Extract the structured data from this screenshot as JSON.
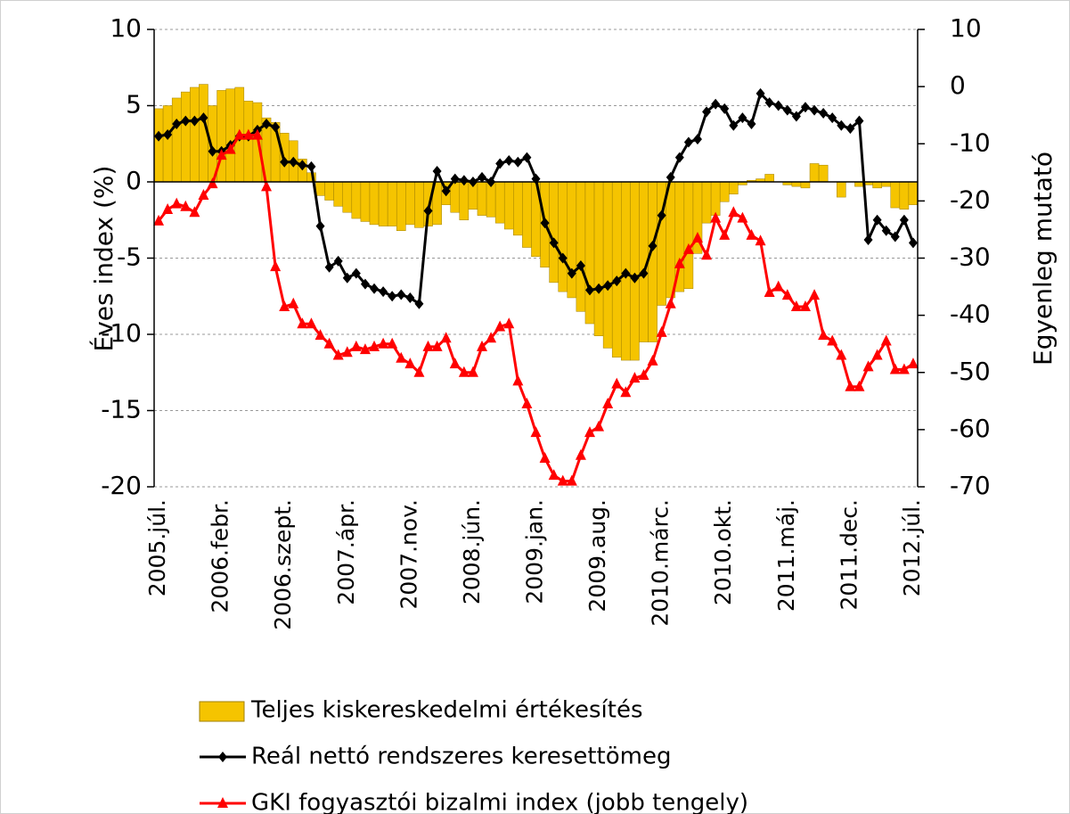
{
  "chart_data": {
    "type": "bar-line",
    "y_label": "Éves index (%)",
    "y2_label": "Egyenleg mutató",
    "categories": [
      "2005.júl.",
      null,
      null,
      null,
      null,
      null,
      null,
      "2006.febr.",
      null,
      null,
      null,
      null,
      null,
      null,
      "2006.szept.",
      null,
      null,
      null,
      null,
      null,
      null,
      "2007.ápr.",
      null,
      null,
      null,
      null,
      null,
      null,
      "2007.nov.",
      null,
      null,
      null,
      null,
      null,
      null,
      "2008.jún.",
      null,
      null,
      null,
      null,
      null,
      null,
      "2009.jan.",
      null,
      null,
      null,
      null,
      null,
      null,
      "2009.aug.",
      null,
      null,
      null,
      null,
      null,
      null,
      "2010.márc.",
      null,
      null,
      null,
      null,
      null,
      null,
      "2010.okt.",
      null,
      null,
      null,
      null,
      null,
      null,
      "2011.máj.",
      null,
      null,
      null,
      null,
      null,
      null,
      "2011.dec.",
      null,
      null,
      null,
      null,
      null,
      null,
      "2012.júl."
    ],
    "ylim": [
      -20,
      10
    ],
    "yticks": [
      10,
      5,
      0,
      -5,
      -10,
      -15,
      -20
    ],
    "y2lim": [
      -70,
      10
    ],
    "y2ticks": [
      10,
      0,
      -10,
      -20,
      -30,
      -40,
      -50,
      -60,
      -70
    ],
    "grid": true,
    "series": [
      {
        "name": "Teljes kiskereskedelmi értékesítés",
        "type": "bar",
        "color": "#f5c400",
        "values": [
          4.8,
          5.0,
          5.5,
          5.9,
          6.2,
          6.4,
          5.0,
          6.0,
          6.1,
          6.2,
          5.3,
          5.2,
          4.2,
          3.9,
          3.2,
          2.7,
          1.5,
          0.6,
          -0.9,
          -1.2,
          -1.6,
          -2.0,
          -2.4,
          -2.6,
          -2.8,
          -2.9,
          -2.9,
          -3.2,
          -2.8,
          -3.0,
          -2.9,
          -2.8,
          -1.5,
          -2.0,
          -2.5,
          -1.8,
          -2.2,
          -2.3,
          -2.7,
          -3.1,
          -3.5,
          -4.3,
          -4.9,
          -5.6,
          -6.6,
          -7.2,
          -7.6,
          -8.5,
          -9.3,
          -10.1,
          -10.9,
          -11.5,
          -11.7,
          -11.7,
          -10.5,
          -10.5,
          -8.1,
          -7.6,
          -7.2,
          -7.0,
          -4.7,
          -2.7,
          -2.2,
          -1.3,
          -0.8,
          -0.2,
          0.1,
          0.2,
          0.5,
          0.0,
          -0.2,
          -0.3,
          -0.4,
          1.2,
          1.1,
          0.0,
          -1.0,
          0.0,
          -0.3,
          -0.2,
          -0.4,
          -0.3,
          -1.7,
          -1.8,
          -1.5
        ]
      },
      {
        "name": "Reál nettó rendszeres keresettömeg",
        "type": "line",
        "marker": "diamond",
        "color": "#000000",
        "values": [
          3.0,
          3.1,
          3.8,
          4.0,
          4.0,
          4.2,
          2.0,
          2.0,
          2.4,
          3.0,
          3.0,
          3.4,
          3.8,
          3.6,
          1.3,
          1.3,
          1.1,
          1.0,
          -2.9,
          -5.6,
          -5.2,
          -6.3,
          -6.0,
          -6.7,
          -7.0,
          -7.2,
          -7.5,
          -7.4,
          -7.6,
          -8.0,
          -1.9,
          0.7,
          -0.6,
          0.2,
          0.1,
          0.0,
          0.3,
          0.0,
          1.2,
          1.4,
          1.3,
          1.6,
          0.2,
          -2.7,
          -4.0,
          -5.0,
          -6.0,
          -5.5,
          -7.1,
          -7.0,
          -6.8,
          -6.5,
          -6.0,
          -6.3,
          -6.0,
          -4.2,
          -2.2,
          0.3,
          1.6,
          2.6,
          2.8,
          4.6,
          5.1,
          4.8,
          3.7,
          4.2,
          3.8,
          5.8,
          5.2,
          5.0,
          4.7,
          4.3,
          4.9,
          4.7,
          4.5,
          4.2,
          3.7,
          3.5,
          4.0,
          -3.8,
          -2.5,
          -3.2,
          -3.6,
          -2.5,
          -4.0
        ]
      },
      {
        "name": "GKI fogyasztói bizalmi index (jobb tengely)",
        "type": "line",
        "marker": "triangle",
        "axis": "y2",
        "color": "#ff0000",
        "values": [
          -23.5,
          -21.5,
          -20.5,
          -21,
          -22,
          -19,
          -17,
          -12,
          -11,
          -8.5,
          -8.5,
          -8.5,
          -17.5,
          -31.5,
          -38.5,
          -38,
          -41.5,
          -41.5,
          -43.5,
          -45,
          -47,
          -46.5,
          -45.5,
          -46,
          -45.5,
          -45,
          -45,
          -47.5,
          -48.5,
          -50,
          -45.5,
          -45.5,
          -44,
          -48.5,
          -50,
          -50,
          -45.5,
          -44,
          -42,
          -41.5,
          -51.5,
          -55.5,
          -60.5,
          -65,
          -68,
          -69,
          -69,
          -64.5,
          -60.5,
          -59.5,
          -55.5,
          -52,
          -53.5,
          -51,
          -50.5,
          -48,
          -43,
          -38,
          -31,
          -28.5,
          -26.5,
          -29.5,
          -23,
          -26,
          -22,
          -23,
          -26,
          -27,
          -36,
          -35,
          -36.5,
          -38.5,
          -38.5,
          -36.5,
          -43.5,
          -44.5,
          -47,
          -52.5,
          -52.5,
          -49,
          -47,
          -44.5,
          -49.5,
          -49.5,
          -48.5
        ]
      }
    ]
  }
}
